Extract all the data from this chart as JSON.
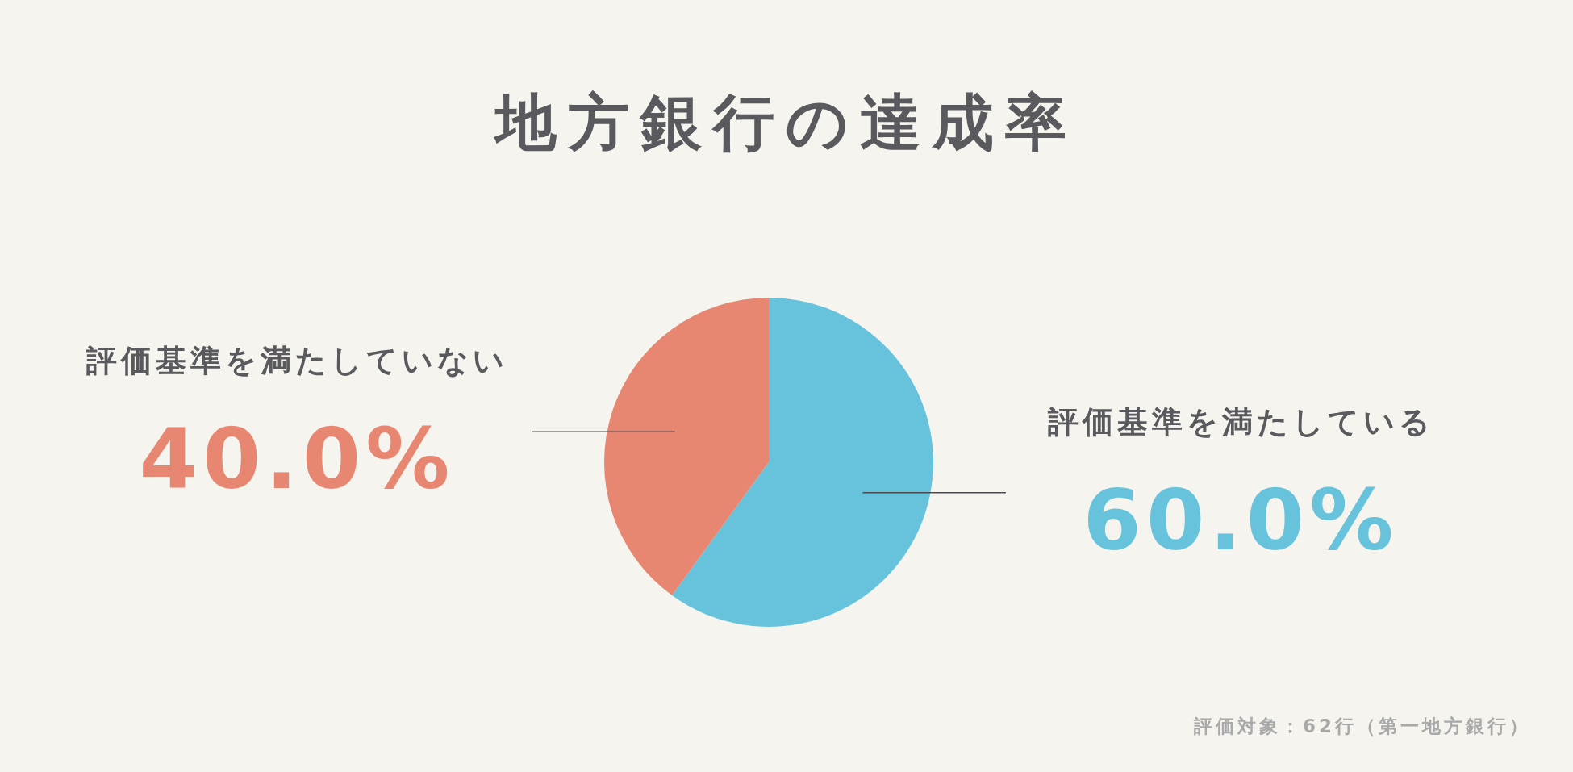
{
  "chart_data": {
    "type": "pie",
    "title": "地方銀行の達成率",
    "categories": [
      "評価基準を満たしている",
      "評価基準を満たしていない"
    ],
    "values": [
      60,
      40
    ],
    "colors": [
      "#67c3dc",
      "#e88771"
    ],
    "value_labels": [
      "60.0%",
      "40.0%"
    ],
    "annotations": [
      "評価対象：62行（第一地方銀行）"
    ]
  }
}
